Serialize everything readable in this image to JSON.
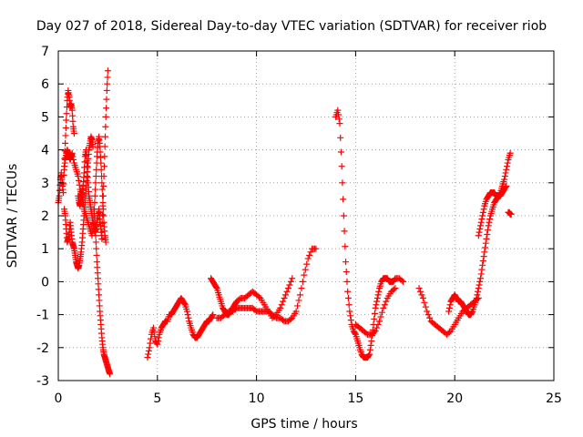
{
  "chart_data": {
    "type": "scatter",
    "title": "Day 027 of 2018, Sidereal Day-to-day VTEC variation (SDTVAR) for receiver riob",
    "xlabel": "GPS time / hours",
    "ylabel": "SDTVAR / TECUs",
    "xlim": [
      0,
      25
    ],
    "ylim": [
      -3,
      7
    ],
    "xticks": [
      "0",
      "5",
      "10",
      "15",
      "20",
      "25"
    ],
    "yticks": [
      "-3",
      "-2",
      "-1",
      "0",
      "1",
      "2",
      "3",
      "4",
      "5",
      "6",
      "7"
    ],
    "grid": true,
    "marker": "plus",
    "series": [
      {
        "name": "SDTVAR",
        "color": "#ff0000",
        "segments": [
          {
            "x": [
              0.0,
              0.05,
              0.1,
              0.15,
              0.2,
              0.25,
              0.3,
              0.35,
              0.4,
              0.45,
              0.5,
              0.55,
              0.6,
              0.65,
              0.7,
              0.75,
              0.8
            ],
            "y": [
              2.4,
              2.6,
              3.1,
              3.3,
              3.0,
              2.7,
              3.5,
              4.2,
              4.9,
              5.5,
              5.8,
              5.6,
              5.3,
              5.4,
              5.2,
              4.7,
              4.5
            ]
          },
          {
            "x": [
              0.3,
              0.35,
              0.4,
              0.45,
              0.5,
              0.55,
              0.6,
              0.65,
              0.7,
              0.8,
              0.9,
              1.0,
              1.1,
              1.2,
              1.3,
              1.4,
              1.5,
              1.6,
              1.7
            ],
            "y": [
              3.4,
              3.7,
              3.9,
              4.0,
              3.9,
              3.8,
              3.7,
              3.8,
              3.9,
              3.6,
              3.4,
              3.2,
              2.8,
              2.6,
              2.2,
              2.0,
              1.8,
              1.6,
              1.4
            ]
          },
          {
            "x": [
              0.3,
              0.35,
              0.4,
              0.45,
              0.5,
              0.55,
              0.6,
              0.65,
              0.7,
              0.75,
              0.8,
              0.85,
              0.9,
              0.95,
              1.0,
              1.05,
              1.1,
              1.15,
              1.2,
              1.25,
              1.3,
              1.35,
              1.4,
              1.45,
              1.5,
              1.55,
              1.6,
              1.65,
              1.7,
              1.75
            ],
            "y": [
              2.2,
              2.0,
              1.6,
              1.2,
              1.3,
              1.5,
              1.8,
              1.5,
              1.2,
              1.1,
              1.0,
              0.8,
              0.6,
              0.5,
              0.4,
              0.5,
              0.7,
              0.9,
              1.2,
              1.6,
              2.0,
              2.4,
              2.8,
              3.2,
              3.6,
              4.0,
              4.2,
              4.4,
              4.3,
              4.1
            ]
          },
          {
            "x": [
              1.0,
              1.05,
              1.1,
              1.15,
              1.2,
              1.25,
              1.3,
              1.35,
              1.4,
              1.45,
              1.5,
              1.55,
              1.6,
              1.65,
              1.7,
              1.75,
              1.8,
              1.85,
              1.9,
              1.95,
              2.0,
              2.05,
              2.1,
              2.15,
              2.2
            ],
            "y": [
              2.6,
              2.4,
              2.3,
              2.5,
              2.7,
              2.9,
              3.3,
              3.8,
              4.0,
              3.5,
              3.0,
              2.6,
              2.4,
              2.2,
              2.0,
              1.8,
              1.7,
              1.5,
              1.6,
              1.8,
              2.0,
              2.2,
              1.9,
              1.6,
              1.3
            ]
          },
          {
            "x": [
              1.8,
              1.85,
              1.9,
              1.95,
              2.0,
              2.05,
              2.1,
              2.15,
              2.2,
              2.25,
              2.3,
              2.35,
              2.4
            ],
            "y": [
              2.0,
              2.6,
              3.2,
              3.8,
              4.2,
              4.4,
              4.1,
              3.6,
              3.0,
              2.4,
              1.8,
              1.4,
              1.2
            ]
          },
          {
            "x": [
              1.8,
              1.85,
              1.9,
              1.95,
              2.0,
              2.05,
              2.1,
              2.15,
              2.2,
              2.25,
              2.3,
              2.35,
              2.4,
              2.45,
              2.5,
              2.55,
              2.6
            ],
            "y": [
              2.2,
              1.8,
              1.2,
              0.6,
              0.1,
              -0.4,
              -0.9,
              -1.3,
              -1.7,
              -2.0,
              -2.2,
              -2.3,
              -2.4,
              -2.5,
              -2.6,
              -2.7,
              -2.8
            ]
          },
          {
            "x": [
              2.2,
              2.25,
              2.3,
              2.35,
              2.4,
              2.45,
              2.5
            ],
            "y": [
              1.5,
              2.3,
              3.2,
              4.1,
              5.0,
              5.8,
              6.4
            ]
          },
          {
            "x": [
              4.5,
              4.6,
              4.7,
              4.8,
              4.9,
              5.0,
              5.1,
              5.2,
              5.3,
              5.4,
              5.5,
              5.6,
              5.7,
              5.8,
              5.9,
              6.0,
              6.1,
              6.2,
              6.3,
              6.4,
              6.5,
              6.6,
              6.7,
              6.8,
              6.9,
              7.0,
              7.1,
              7.2,
              7.3,
              7.4,
              7.5,
              7.6,
              7.7,
              7.8
            ],
            "y": [
              -2.3,
              -2.0,
              -1.6,
              -1.4,
              -1.8,
              -1.9,
              -1.6,
              -1.4,
              -1.3,
              -1.2,
              -1.2,
              -1.0,
              -1.0,
              -0.9,
              -0.8,
              -0.7,
              -0.6,
              -0.5,
              -0.6,
              -0.7,
              -0.9,
              -1.2,
              -1.4,
              -1.6,
              -1.7,
              -1.7,
              -1.6,
              -1.5,
              -1.4,
              -1.3,
              -1.2,
              -1.2,
              -1.1,
              -1.0
            ]
          },
          {
            "x": [
              7.7,
              7.8,
              7.9,
              8.0,
              8.1,
              8.2,
              8.3,
              8.4,
              8.5,
              8.6,
              8.7,
              8.8,
              8.9,
              9.0,
              9.2,
              9.4,
              9.6,
              9.8,
              10.0,
              10.2,
              10.4,
              10.6,
              10.8,
              11.0,
              11.2,
              11.4,
              11.6,
              11.8
            ],
            "y": [
              0.1,
              0.0,
              -0.1,
              -0.2,
              -0.4,
              -0.6,
              -0.8,
              -0.9,
              -1.0,
              -1.0,
              -0.9,
              -0.8,
              -0.7,
              -0.6,
              -0.5,
              -0.5,
              -0.4,
              -0.3,
              -0.4,
              -0.5,
              -0.7,
              -0.9,
              -1.1,
              -1.0,
              -0.8,
              -0.5,
              -0.2,
              0.1
            ]
          },
          {
            "x": [
              8.0,
              8.2,
              8.4,
              8.6,
              8.8,
              9.0,
              9.2,
              9.4,
              9.6,
              9.8,
              10.0,
              10.2,
              10.4,
              10.6,
              10.8,
              11.0,
              11.2,
              11.4,
              11.6,
              11.8,
              12.0,
              12.2,
              12.4,
              12.6,
              12.8,
              13.0
            ],
            "y": [
              -1.1,
              -1.1,
              -1.0,
              -0.9,
              -0.9,
              -0.8,
              -0.8,
              -0.8,
              -0.8,
              -0.8,
              -0.9,
              -0.9,
              -0.9,
              -0.9,
              -1.0,
              -1.1,
              -1.1,
              -1.2,
              -1.2,
              -1.1,
              -0.9,
              -0.4,
              0.2,
              0.7,
              1.0,
              1.0
            ]
          },
          {
            "x": [
              14.0,
              14.1,
              14.2,
              14.3,
              14.4,
              14.5,
              14.6,
              14.7,
              14.8,
              14.9,
              15.0,
              15.1,
              15.2,
              15.3,
              15.4,
              15.5,
              15.6,
              15.7,
              15.8,
              15.9,
              16.0,
              16.1,
              16.2,
              16.3,
              16.4,
              16.5,
              16.6,
              16.7,
              16.8,
              16.9,
              17.0,
              17.2,
              17.4
            ],
            "y": [
              5.0,
              5.2,
              4.8,
              3.5,
              2.0,
              0.6,
              -0.3,
              -0.9,
              -1.3,
              -1.5,
              -1.6,
              -1.8,
              -2.0,
              -2.2,
              -2.3,
              -2.3,
              -2.3,
              -2.2,
              -1.8,
              -1.3,
              -0.8,
              -0.5,
              -0.2,
              0.0,
              0.1,
              0.1,
              0.1,
              0.0,
              0.0,
              0.0,
              0.1,
              0.1,
              0.0
            ]
          },
          {
            "x": [
              15.0,
              15.2,
              15.4,
              15.6,
              15.8,
              16.0,
              16.2,
              16.4,
              16.6,
              16.8,
              17.0
            ],
            "y": [
              -1.3,
              -1.4,
              -1.5,
              -1.6,
              -1.6,
              -1.5,
              -1.2,
              -0.8,
              -0.5,
              -0.3,
              -0.2
            ]
          },
          {
            "x": [
              18.2,
              18.4,
              18.6,
              18.8,
              19.0,
              19.2,
              19.4,
              19.6,
              19.8,
              20.0,
              20.2,
              20.4,
              20.6,
              20.8,
              21.0,
              21.2
            ],
            "y": [
              -0.2,
              -0.5,
              -0.9,
              -1.2,
              -1.3,
              -1.4,
              -1.5,
              -1.6,
              -1.5,
              -1.3,
              -1.1,
              -0.9,
              -0.8,
              -0.7,
              -0.6,
              -0.5
            ]
          },
          {
            "x": [
              19.7,
              19.8,
              19.9,
              20.0,
              20.1,
              20.2,
              20.3,
              20.4,
              20.5,
              20.6,
              20.7,
              20.8,
              20.9,
              21.0,
              21.1,
              21.2,
              21.3,
              21.4,
              21.5,
              21.6,
              21.7,
              21.8,
              21.9,
              22.0,
              22.1,
              22.2,
              22.3,
              22.4,
              22.5,
              22.6
            ],
            "y": [
              -0.9,
              -0.6,
              -0.5,
              -0.4,
              -0.5,
              -0.6,
              -0.6,
              -0.7,
              -0.8,
              -0.9,
              -1.0,
              -1.0,
              -0.9,
              -0.7,
              -0.5,
              -0.2,
              0.1,
              0.5,
              0.9,
              1.3,
              1.7,
              2.0,
              2.2,
              2.4,
              2.5,
              2.6,
              2.6,
              2.7,
              2.8,
              2.9
            ]
          },
          {
            "x": [
              21.2,
              21.3,
              21.4,
              21.5,
              21.6,
              21.7,
              21.8,
              21.9,
              22.0,
              22.1,
              22.2,
              22.3,
              22.4,
              22.5,
              22.6,
              22.7,
              22.8
            ],
            "y": [
              1.4,
              1.7,
              2.0,
              2.3,
              2.5,
              2.6,
              2.7,
              2.7,
              2.7,
              2.6,
              2.6,
              2.7,
              2.9,
              3.1,
              3.4,
              3.7,
              3.9
            ]
          },
          {
            "x": [
              22.7,
              22.75,
              22.8,
              22.85
            ],
            "y": [
              2.1,
              2.1,
              2.05,
              2.05
            ]
          }
        ]
      }
    ]
  }
}
